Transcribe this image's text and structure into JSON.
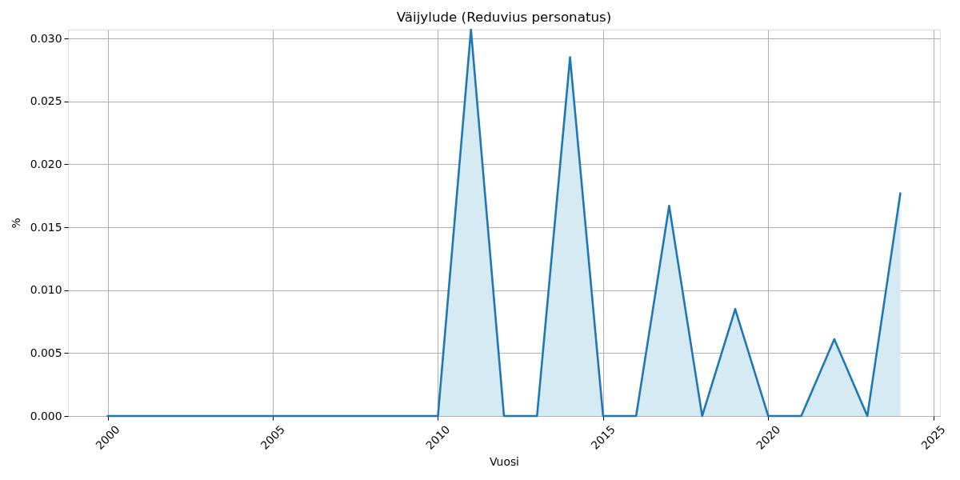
{
  "chart_data": {
    "type": "area",
    "title": "Väijylude (Reduvius personatus)",
    "xlabel": "Vuosi",
    "ylabel": "%",
    "x": [
      2000,
      2001,
      2002,
      2003,
      2004,
      2005,
      2006,
      2007,
      2008,
      2009,
      2010,
      2011,
      2012,
      2013,
      2014,
      2015,
      2016,
      2017,
      2018,
      2019,
      2020,
      2021,
      2022,
      2023,
      2024
    ],
    "series": [
      {
        "type": "line",
        "color": "#1f77b4",
        "values": [
          0,
          0,
          0,
          0,
          0,
          0,
          0,
          0,
          0,
          0,
          0,
          0.0307,
          0,
          0,
          0.0285,
          0,
          0,
          0.0167,
          0,
          0.0085,
          0,
          0,
          0.0061,
          0,
          0.0177
        ]
      },
      {
        "color": "#d5eaf2",
        "values": [
          null,
          null,
          null,
          null,
          null,
          null,
          null,
          null,
          null,
          null,
          0,
          0.0307,
          0,
          0,
          0.0285,
          0,
          0,
          0.0167,
          0,
          0.0085,
          0,
          0,
          0.0061,
          0,
          0.0177
        ]
      }
    ],
    "xlim": [
      1998.8,
      2025.2
    ],
    "xticks": [
      2000,
      2005,
      2010,
      2015,
      2020,
      2025
    ],
    "ylim": [
      0,
      0.0307
    ],
    "yticks": [
      {
        "value": 0,
        "label": "0.000"
      },
      {
        "value": 0.005,
        "label": "0.005"
      },
      {
        "value": 0.01,
        "label": "0.010"
      },
      {
        "value": 0.015,
        "label": "0.015"
      },
      {
        "value": 0.02,
        "label": "0.020"
      },
      {
        "value": 0.025,
        "label": "0.025"
      },
      {
        "value": 0.03,
        "label": "0.030"
      }
    ],
    "grid": true
  }
}
